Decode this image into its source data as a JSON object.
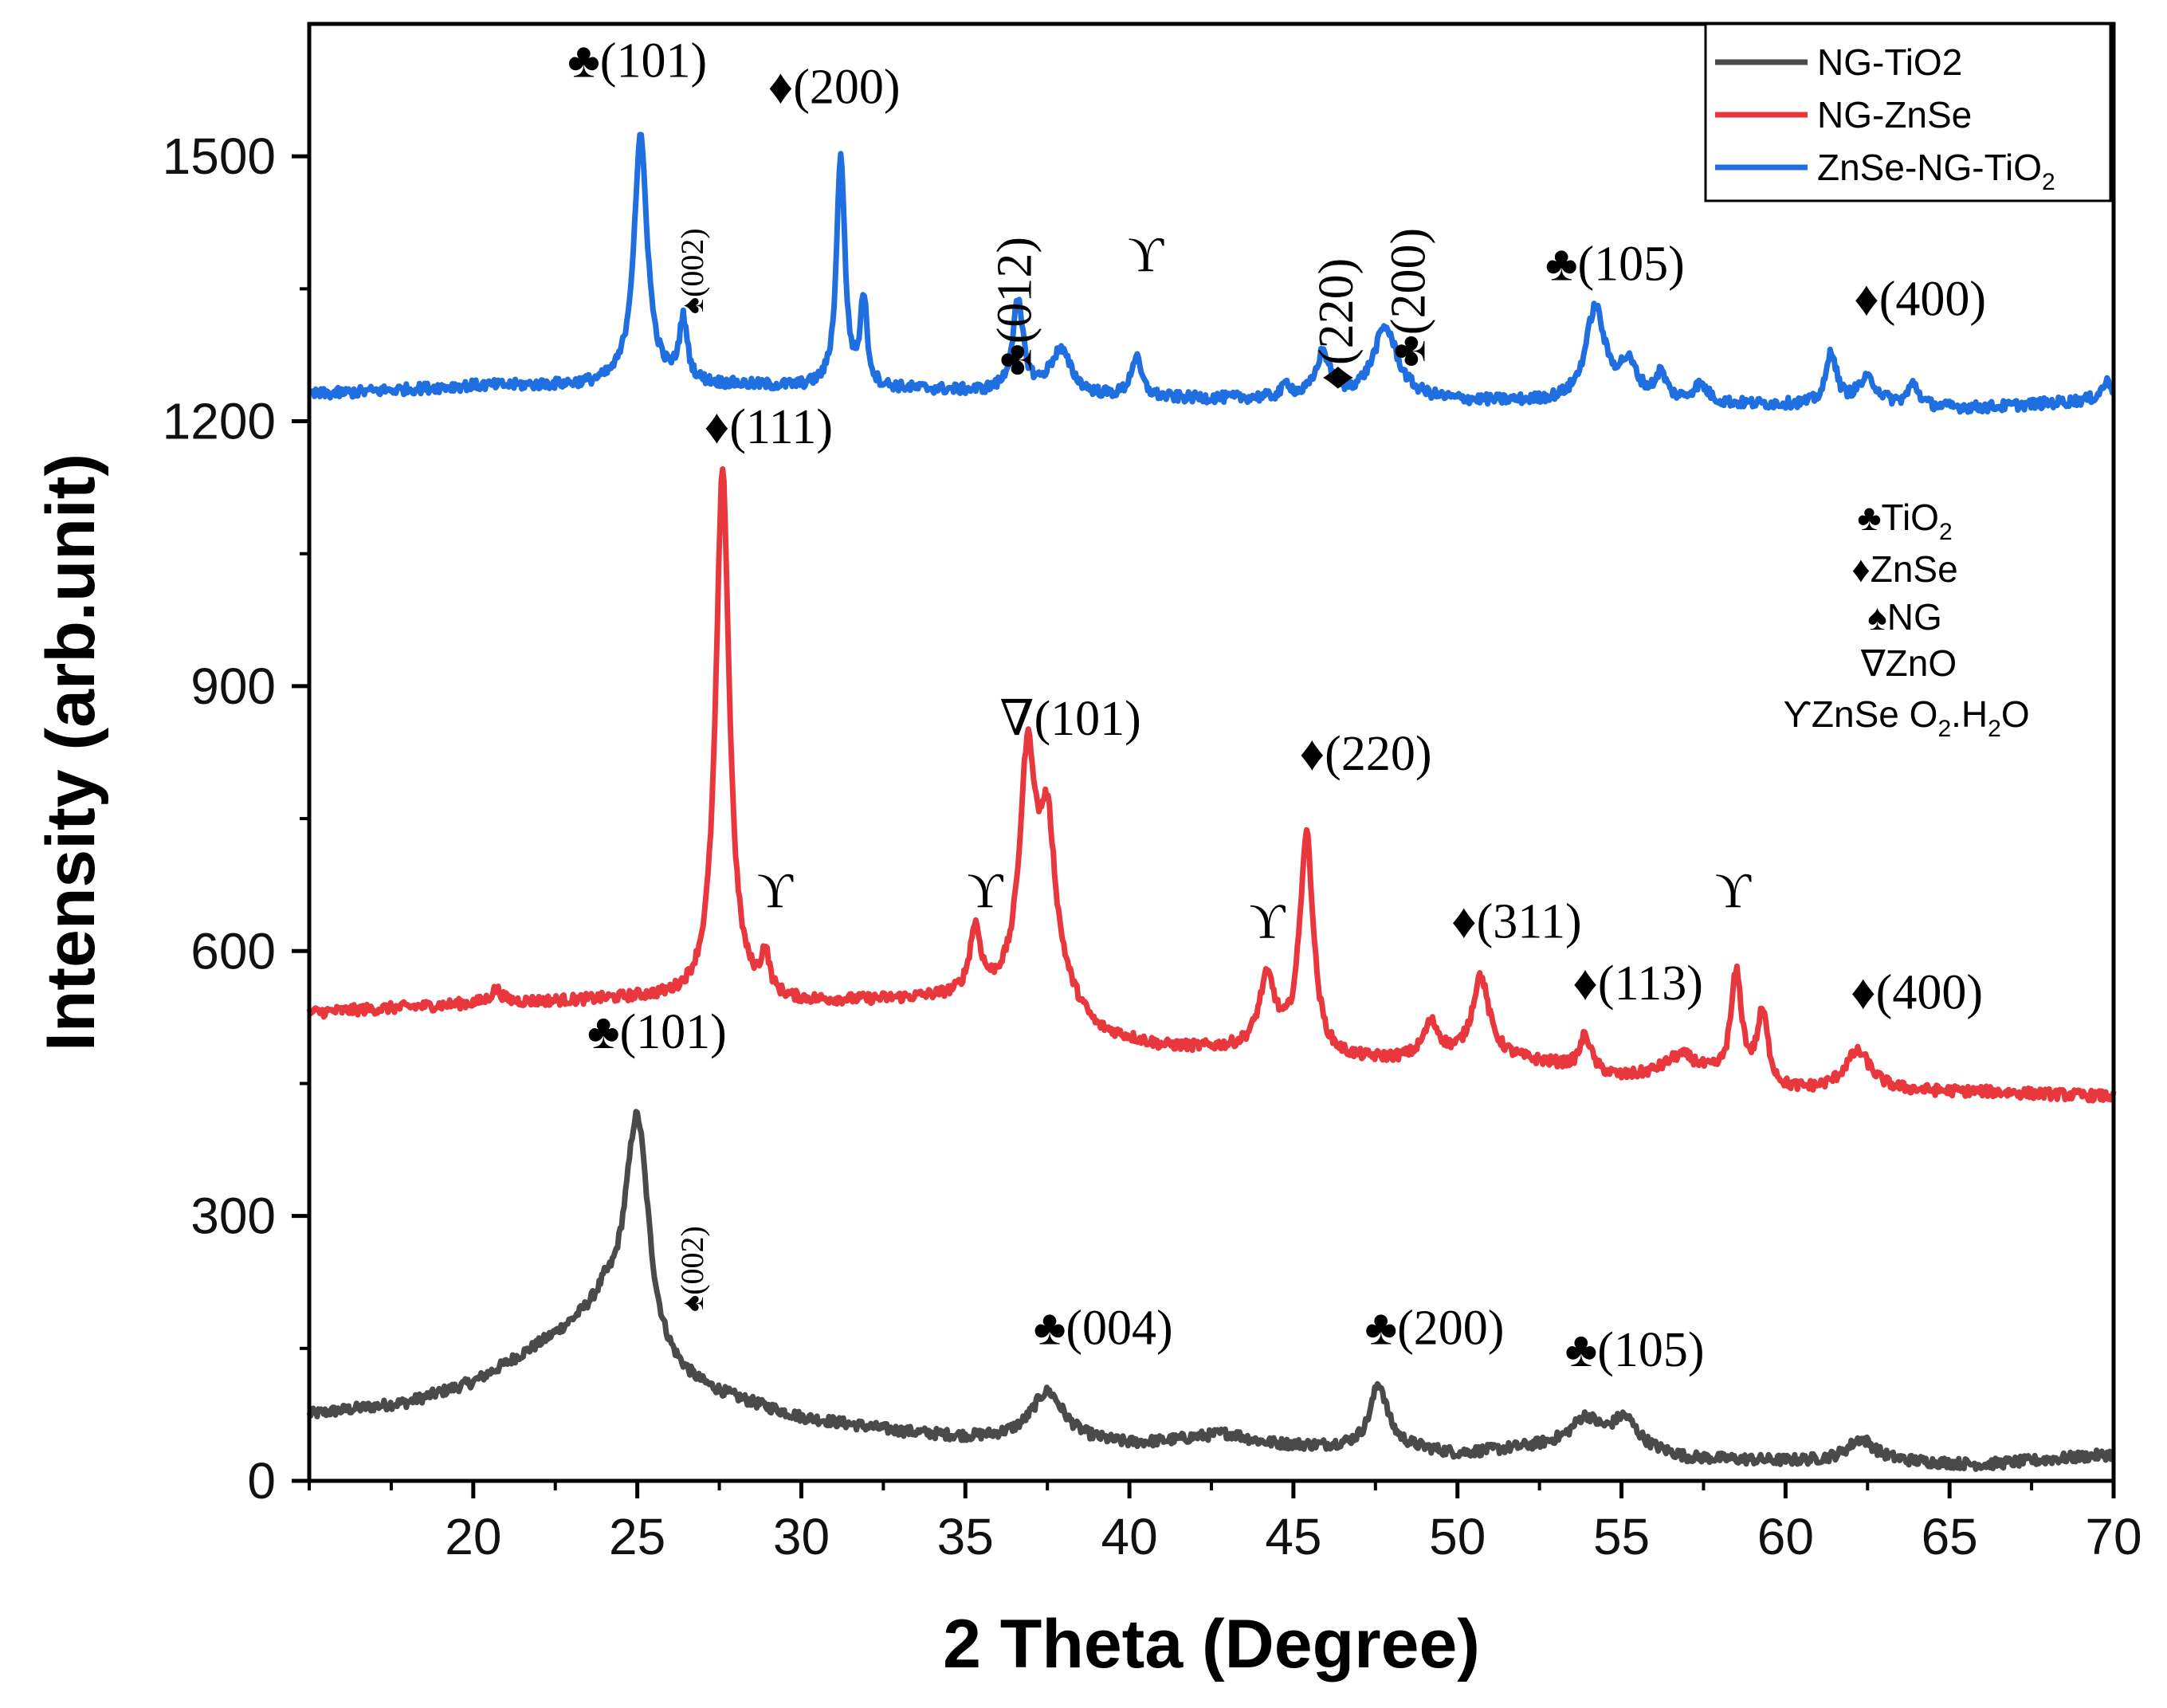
{
  "chart_data": {
    "type": "line",
    "xlabel": "2 Theta (Degree)",
    "ylabel": "Intensity (arb.unit)",
    "xlim": [
      15,
      70
    ],
    "ylim": [
      0,
      1650
    ],
    "xticks": [
      20,
      25,
      30,
      35,
      40,
      45,
      50,
      55,
      60,
      65,
      70
    ],
    "yticks": [
      0,
      300,
      600,
      900,
      1200,
      1500
    ],
    "legend_position": "top-right",
    "series": [
      {
        "name": "NG-TiO2",
        "color": "#4a4a4a",
        "baseline": [
          [
            15,
            75
          ],
          [
            18,
            88
          ],
          [
            20,
            110
          ],
          [
            22,
            150
          ],
          [
            24,
            190
          ],
          [
            25.5,
            120
          ],
          [
            27,
            100
          ],
          [
            30,
            70
          ],
          [
            33,
            55
          ],
          [
            35,
            48
          ],
          [
            38,
            45
          ],
          [
            40,
            40
          ],
          [
            42,
            45
          ],
          [
            44,
            40
          ],
          [
            46,
            38
          ],
          [
            48,
            40
          ],
          [
            50,
            30
          ],
          [
            53,
            40
          ],
          [
            55,
            40
          ],
          [
            57,
            25
          ],
          [
            60,
            22
          ],
          [
            63,
            22
          ],
          [
            66,
            18
          ],
          [
            70,
            30
          ]
        ],
        "peaks": [
          [
            25.0,
            270,
            0.45
          ],
          [
            37.5,
            55,
            0.6
          ],
          [
            47.6,
            70,
            0.3
          ],
          [
            53.9,
            30,
            0.5
          ],
          [
            55.1,
            30,
            0.45
          ],
          [
            62.3,
            25,
            0.5
          ],
          [
            43,
            10,
            0.8
          ]
        ]
      },
      {
        "name": "NG-ZnSe",
        "color": "#e8383d",
        "baseline": [
          [
            15,
            530
          ],
          [
            20,
            540
          ],
          [
            25,
            545
          ],
          [
            28,
            540
          ],
          [
            30,
            540
          ],
          [
            34,
            545
          ],
          [
            36,
            545
          ],
          [
            38,
            540
          ],
          [
            39,
            505
          ],
          [
            41,
            490
          ],
          [
            44,
            485
          ],
          [
            46,
            475
          ],
          [
            49,
            475
          ],
          [
            51,
            480
          ],
          [
            53,
            470
          ],
          [
            55,
            455
          ],
          [
            57,
            460
          ],
          [
            60,
            440
          ],
          [
            63,
            440
          ],
          [
            66,
            440
          ],
          [
            70,
            435
          ]
        ],
        "peaks": [
          [
            27.6,
            600,
            0.25
          ],
          [
            28.9,
            45,
            0.15
          ],
          [
            35.3,
            75,
            0.2
          ],
          [
            36.9,
            265,
            0.3
          ],
          [
            37.5,
            180,
            0.3
          ],
          [
            44.2,
            80,
            0.3
          ],
          [
            45.4,
            250,
            0.25
          ],
          [
            49.2,
            40,
            0.3
          ],
          [
            50.7,
            90,
            0.3
          ],
          [
            53.9,
            40,
            0.2
          ],
          [
            56.8,
            20,
            0.6
          ],
          [
            58.5,
            120,
            0.2
          ],
          [
            59.3,
            80,
            0.2
          ],
          [
            62.2,
            45,
            0.5
          ],
          [
            20.7,
            15,
            0.2
          ]
        ]
      },
      {
        "name": "ZnSe-NG-TiO2",
        "color": "#1f6fe0",
        "baseline": [
          [
            15,
            1230
          ],
          [
            20,
            1240
          ],
          [
            24,
            1240
          ],
          [
            26,
            1240
          ],
          [
            28,
            1240
          ],
          [
            30,
            1238
          ],
          [
            34,
            1235
          ],
          [
            38,
            1228
          ],
          [
            40,
            1225
          ],
          [
            45,
            1225
          ],
          [
            48,
            1225
          ],
          [
            50,
            1222
          ],
          [
            55,
            1220
          ],
          [
            58,
            1218
          ],
          [
            60,
            1218
          ],
          [
            64,
            1215
          ],
          [
            66,
            1215
          ],
          [
            70,
            1225
          ]
        ],
        "peaks": [
          [
            25.1,
            280,
            0.25
          ],
          [
            26.4,
            70,
            0.15
          ],
          [
            31.2,
            265,
            0.15
          ],
          [
            31.9,
            100,
            0.12
          ],
          [
            36.6,
            100,
            0.2
          ],
          [
            37.9,
            50,
            0.4
          ],
          [
            40.2,
            45,
            0.2
          ],
          [
            44.8,
            15,
            0.15
          ],
          [
            45.9,
            50,
            0.25
          ],
          [
            47.8,
            80,
            0.45
          ],
          [
            54.2,
            105,
            0.35
          ],
          [
            55.2,
            40,
            0.35
          ],
          [
            56.2,
            30,
            0.2
          ],
          [
            57.4,
            20,
            0.3
          ],
          [
            61.4,
            60,
            0.18
          ],
          [
            62.5,
            30,
            0.4
          ],
          [
            63.9,
            25,
            0.2
          ],
          [
            69.8,
            20,
            0.2
          ]
        ]
      }
    ],
    "legend": [
      {
        "label": "NG-TiO2",
        "color": "#4a4a4a"
      },
      {
        "label": "NG-ZnSe",
        "color": "#e8383d"
      },
      {
        "label": "ZnSe-NG-TiO",
        "sub": "2",
        "color": "#1f6fe0"
      }
    ],
    "key": [
      {
        "symbol": "♣",
        "label": "TiO",
        "sub": "2"
      },
      {
        "symbol": "♦",
        "label": "ZnSe",
        "sub": ""
      },
      {
        "symbol": "♠",
        "label": "NG",
        "sub": ""
      },
      {
        "symbol": "∇",
        "label": "ZnO",
        "sub": ""
      },
      {
        "symbol": "ϒ",
        "label": "ZnSe O",
        "sub": "2",
        "label2": ".H",
        "sub2": "2",
        "label3": "O"
      }
    ],
    "annotations": [
      {
        "text": "♣(101)",
        "x": 25.0,
        "y": 1590
      },
      {
        "text": "♦(200)",
        "x": 31.0,
        "y": 1560
      },
      {
        "text": "♠(002)",
        "x": 27.0,
        "y": 1370,
        "rotated": true,
        "small": true
      },
      {
        "text": "♣(012)",
        "x": 37.0,
        "y": 1330,
        "rotated": true
      },
      {
        "text": "ϒ",
        "x": 40.5,
        "y": 1370
      },
      {
        "text": "♦(220)",
        "x": 46.8,
        "y": 1310,
        "rotated": true
      },
      {
        "text": "♣(200)",
        "x": 49.0,
        "y": 1340,
        "rotated": true
      },
      {
        "text": "♣(105)",
        "x": 54.8,
        "y": 1360
      },
      {
        "text": "♦(400)",
        "x": 64.1,
        "y": 1320
      },
      {
        "text": "♦(111)",
        "x": 29.0,
        "y": 1175
      },
      {
        "text": "ϒ",
        "x": 29.2,
        "y": 650
      },
      {
        "text": "ϒ",
        "x": 35.6,
        "y": 650
      },
      {
        "text": "∇(101)",
        "x": 38.2,
        "y": 845
      },
      {
        "text": "ϒ",
        "x": 44.2,
        "y": 615
      },
      {
        "text": "♦(220)",
        "x": 47.2,
        "y": 805
      },
      {
        "text": "♦(311)",
        "x": 51.8,
        "y": 615
      },
      {
        "text": "♦(113)",
        "x": 55.5,
        "y": 545
      },
      {
        "text": "ϒ",
        "x": 58.4,
        "y": 650
      },
      {
        "text": "♦(400)",
        "x": 64.0,
        "y": 535
      },
      {
        "text": "♣(101)",
        "x": 25.6,
        "y": 490
      },
      {
        "text": "♠(002)",
        "x": 27.0,
        "y": 240,
        "rotated": true,
        "small": true
      },
      {
        "text": "♣(004)",
        "x": 39.2,
        "y": 155
      },
      {
        "text": "♣(200)",
        "x": 49.3,
        "y": 155
      },
      {
        "text": "♣(105)",
        "x": 55.4,
        "y": 130
      }
    ]
  }
}
